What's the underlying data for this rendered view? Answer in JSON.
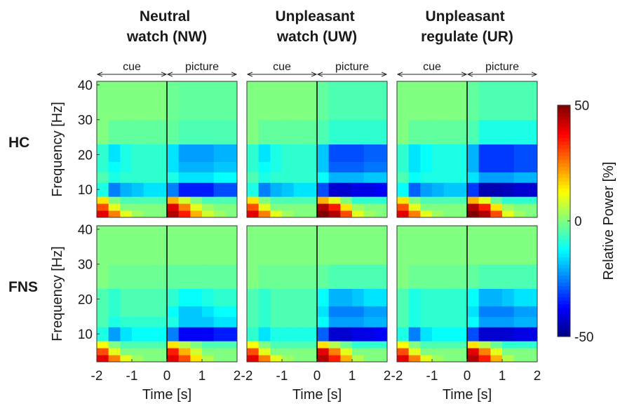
{
  "chart_data": [
    {
      "type": "heatmap",
      "title": "Neutral watch (NW)",
      "row_label": "HC",
      "ylabel": "Frequency [Hz]",
      "xlim": [
        -2,
        2
      ],
      "ylim": [
        2,
        41
      ],
      "yticks": [
        10,
        20,
        30,
        40
      ],
      "onset": 0,
      "annotations": [
        {
          "text": "cue",
          "x": [
            -2,
            0
          ]
        },
        {
          "text": "picture",
          "x": [
            0,
            2
          ]
        }
      ],
      "x_edges": [
        -2,
        -1.667,
        -1.333,
        -1,
        -0.667,
        -0.333,
        0,
        0.333,
        0.667,
        1,
        1.333,
        1.667,
        2
      ],
      "y_edges": [
        2,
        4,
        6,
        8,
        12,
        15,
        18,
        23,
        30,
        41
      ],
      "z": [
        [
          40,
          25,
          10,
          3,
          0,
          0,
          45,
          35,
          20,
          8,
          3,
          0
        ],
        [
          30,
          10,
          0,
          0,
          0,
          0,
          40,
          25,
          10,
          3,
          0,
          0
        ],
        [
          15,
          0,
          -5,
          -5,
          -5,
          -5,
          20,
          8,
          0,
          -5,
          -5,
          -5
        ],
        [
          -10,
          -25,
          -20,
          -18,
          -15,
          -15,
          -25,
          -35,
          -35,
          -35,
          -30,
          -30
        ],
        [
          -5,
          -10,
          -8,
          -8,
          -8,
          -8,
          -10,
          -15,
          -15,
          -15,
          -12,
          -12
        ],
        [
          -8,
          -12,
          -10,
          -8,
          -8,
          -8,
          -15,
          -20,
          -20,
          -20,
          -18,
          -18
        ],
        [
          -8,
          -15,
          -10,
          -8,
          -8,
          -8,
          -15,
          -22,
          -22,
          -22,
          -20,
          -20
        ],
        [
          0,
          -3,
          -3,
          -3,
          -3,
          -3,
          -3,
          -5,
          -5,
          -5,
          -5,
          -5
        ],
        [
          0,
          0,
          0,
          0,
          0,
          0,
          -2,
          -3,
          -3,
          -3,
          -3,
          -3
        ]
      ]
    },
    {
      "type": "heatmap",
      "title": "Unpleasant watch (UW)",
      "xlim": [
        -2,
        2
      ],
      "ylim": [
        2,
        41
      ],
      "onset": 0,
      "annotations": [
        {
          "text": "cue",
          "x": [
            -2,
            0
          ]
        },
        {
          "text": "picture",
          "x": [
            0,
            2
          ]
        }
      ],
      "x_edges": [
        -2,
        -1.667,
        -1.333,
        -1,
        -0.667,
        -0.333,
        0,
        0.333,
        0.667,
        1,
        1.333,
        1.667,
        2
      ],
      "y_edges": [
        2,
        4,
        6,
        8,
        12,
        15,
        18,
        23,
        30,
        41
      ],
      "z": [
        [
          40,
          25,
          10,
          3,
          0,
          0,
          50,
          45,
          30,
          10,
          3,
          0
        ],
        [
          30,
          10,
          0,
          0,
          0,
          0,
          45,
          35,
          15,
          3,
          0,
          0
        ],
        [
          15,
          0,
          -5,
          -5,
          -5,
          -5,
          20,
          10,
          0,
          -8,
          -8,
          -8
        ],
        [
          -10,
          -25,
          -20,
          -18,
          -15,
          -15,
          -30,
          -42,
          -42,
          -40,
          -40,
          -38
        ],
        [
          -5,
          -10,
          -8,
          -8,
          -8,
          -8,
          -12,
          -20,
          -20,
          -20,
          -18,
          -18
        ],
        [
          -8,
          -12,
          -10,
          -8,
          -8,
          -8,
          -18,
          -28,
          -28,
          -28,
          -26,
          -26
        ],
        [
          -8,
          -15,
          -10,
          -8,
          -8,
          -8,
          -18,
          -30,
          -30,
          -30,
          -28,
          -28
        ],
        [
          0,
          -3,
          -3,
          -3,
          -3,
          -3,
          -5,
          -8,
          -8,
          -8,
          -8,
          -8
        ],
        [
          0,
          0,
          0,
          0,
          0,
          0,
          -3,
          -5,
          -5,
          -5,
          -5,
          -5
        ]
      ]
    },
    {
      "type": "heatmap",
      "title": "Unpleasant regulate (UR)",
      "xlim": [
        -2,
        2
      ],
      "ylim": [
        2,
        41
      ],
      "onset": 0,
      "annotations": [
        {
          "text": "cue",
          "x": [
            -2,
            0
          ]
        },
        {
          "text": "picture",
          "x": [
            0,
            2
          ]
        }
      ],
      "x_edges": [
        -2,
        -1.667,
        -1.333,
        -1,
        -0.667,
        -0.333,
        0,
        0.333,
        0.667,
        1,
        1.333,
        1.667,
        2
      ],
      "y_edges": [
        2,
        4,
        6,
        8,
        12,
        15,
        18,
        23,
        30,
        41
      ],
      "z": [
        [
          40,
          25,
          10,
          3,
          0,
          0,
          50,
          45,
          30,
          10,
          3,
          0
        ],
        [
          30,
          10,
          0,
          0,
          0,
          0,
          45,
          35,
          15,
          3,
          0,
          0
        ],
        [
          15,
          0,
          -5,
          -5,
          -5,
          -5,
          20,
          10,
          -2,
          -8,
          -8,
          -8
        ],
        [
          -12,
          -28,
          -22,
          -20,
          -18,
          -18,
          -32,
          -45,
          -45,
          -44,
          -42,
          -42
        ],
        [
          -5,
          -12,
          -10,
          -10,
          -10,
          -10,
          -15,
          -22,
          -22,
          -22,
          -20,
          -20
        ],
        [
          -8,
          -15,
          -12,
          -10,
          -10,
          -10,
          -20,
          -32,
          -32,
          -32,
          -30,
          -30
        ],
        [
          -8,
          -15,
          -12,
          -10,
          -10,
          -10,
          -20,
          -32,
          -32,
          -32,
          -30,
          -30
        ],
        [
          0,
          -3,
          -3,
          -3,
          -3,
          -3,
          -5,
          -10,
          -10,
          -10,
          -10,
          -10
        ],
        [
          0,
          0,
          0,
          0,
          0,
          0,
          -3,
          -5,
          -5,
          -5,
          -5,
          -5
        ]
      ]
    },
    {
      "type": "heatmap",
      "row_label": "FNS",
      "ylabel": "Frequency [Hz]",
      "xlabel": "Time [s]",
      "xlim": [
        -2,
        2
      ],
      "ylim": [
        2,
        41
      ],
      "xticks": [
        -2,
        -1,
        0,
        1,
        2
      ],
      "yticks": [
        10,
        20,
        30,
        40
      ],
      "onset": 0,
      "x_edges": [
        -2,
        -1.667,
        -1.333,
        -1,
        -0.667,
        -0.333,
        0,
        0.333,
        0.667,
        1,
        1.333,
        1.667,
        2
      ],
      "y_edges": [
        2,
        4,
        6,
        8,
        12,
        15,
        18,
        23,
        30,
        41
      ],
      "z": [
        [
          40,
          25,
          10,
          3,
          0,
          0,
          40,
          30,
          15,
          5,
          0,
          0
        ],
        [
          30,
          10,
          0,
          0,
          0,
          0,
          35,
          20,
          8,
          0,
          0,
          0
        ],
        [
          12,
          0,
          -5,
          -5,
          -5,
          -5,
          15,
          5,
          0,
          -5,
          -5,
          -5
        ],
        [
          -10,
          -22,
          -15,
          -12,
          -12,
          -12,
          -25,
          -38,
          -38,
          -38,
          -35,
          -35
        ],
        [
          -5,
          -10,
          -8,
          -8,
          -8,
          -8,
          -10,
          -18,
          -18,
          -18,
          -15,
          -15
        ],
        [
          -5,
          -8,
          -5,
          -5,
          -5,
          -5,
          -12,
          -18,
          -18,
          -15,
          -12,
          -12
        ],
        [
          -5,
          -8,
          -5,
          -5,
          -5,
          -5,
          -8,
          -12,
          -12,
          -10,
          -8,
          -8
        ],
        [
          0,
          -2,
          -2,
          -2,
          -2,
          -2,
          -3,
          -3,
          -3,
          -3,
          -3,
          -3
        ],
        [
          0,
          0,
          0,
          0,
          0,
          0,
          0,
          0,
          0,
          0,
          0,
          0
        ]
      ]
    },
    {
      "type": "heatmap",
      "xlabel": "Time [s]",
      "xlim": [
        -2,
        2
      ],
      "ylim": [
        2,
        41
      ],
      "xticks": [
        -2,
        -1,
        0,
        1,
        2
      ],
      "onset": 0,
      "x_edges": [
        -2,
        -1.667,
        -1.333,
        -1,
        -0.667,
        -0.333,
        0,
        0.333,
        0.667,
        1,
        1.333,
        1.667,
        2
      ],
      "y_edges": [
        2,
        4,
        6,
        8,
        12,
        15,
        18,
        23,
        30,
        41
      ],
      "z": [
        [
          40,
          25,
          10,
          3,
          0,
          0,
          45,
          35,
          20,
          5,
          0,
          0
        ],
        [
          30,
          10,
          0,
          0,
          0,
          0,
          40,
          25,
          10,
          0,
          0,
          0
        ],
        [
          12,
          0,
          -5,
          -5,
          -5,
          -5,
          15,
          5,
          -2,
          -8,
          -8,
          -8
        ],
        [
          -8,
          -15,
          -10,
          -10,
          -10,
          -10,
          -28,
          -42,
          -42,
          -40,
          -40,
          -38
        ],
        [
          -5,
          -8,
          -5,
          -5,
          -5,
          -5,
          -12,
          -22,
          -22,
          -22,
          -20,
          -20
        ],
        [
          -5,
          -8,
          -5,
          -5,
          -5,
          -5,
          -15,
          -25,
          -25,
          -25,
          -22,
          -22
        ],
        [
          -5,
          -8,
          -5,
          -5,
          -5,
          -5,
          -12,
          -20,
          -20,
          -18,
          -15,
          -15
        ],
        [
          0,
          -2,
          -2,
          -2,
          -2,
          -2,
          -3,
          -5,
          -5,
          -5,
          -5,
          -5
        ],
        [
          0,
          0,
          0,
          0,
          0,
          0,
          0,
          0,
          0,
          0,
          0,
          0
        ]
      ]
    },
    {
      "type": "heatmap",
      "xlabel": "Time [s]",
      "xlim": [
        -2,
        2
      ],
      "ylim": [
        2,
        41
      ],
      "xticks": [
        -2,
        -1,
        0,
        1,
        2
      ],
      "onset": 0,
      "x_edges": [
        -2,
        -1.667,
        -1.333,
        -1,
        -0.667,
        -0.333,
        0,
        0.333,
        0.667,
        1,
        1.333,
        1.667,
        2
      ],
      "y_edges": [
        2,
        4,
        6,
        8,
        12,
        15,
        18,
        23,
        30,
        41
      ],
      "z": [
        [
          40,
          25,
          10,
          3,
          0,
          0,
          45,
          35,
          20,
          5,
          0,
          0
        ],
        [
          30,
          10,
          0,
          0,
          0,
          0,
          40,
          25,
          10,
          0,
          0,
          0
        ],
        [
          12,
          0,
          -5,
          -5,
          -5,
          -5,
          15,
          5,
          -2,
          -8,
          -8,
          -8
        ],
        [
          -10,
          -25,
          -15,
          -12,
          -12,
          -12,
          -30,
          -42,
          -42,
          -42,
          -40,
          -40
        ],
        [
          -5,
          -10,
          -8,
          -8,
          -8,
          -8,
          -12,
          -22,
          -22,
          -22,
          -20,
          -20
        ],
        [
          -5,
          -10,
          -8,
          -8,
          -8,
          -8,
          -15,
          -25,
          -25,
          -25,
          -22,
          -22
        ],
        [
          -5,
          -10,
          -8,
          -8,
          -8,
          -8,
          -12,
          -20,
          -20,
          -18,
          -15,
          -15
        ],
        [
          0,
          -2,
          -2,
          -2,
          -2,
          -2,
          -3,
          -5,
          -5,
          -5,
          -5,
          -5
        ],
        [
          0,
          0,
          0,
          0,
          0,
          0,
          0,
          0,
          0,
          0,
          0,
          0
        ]
      ]
    }
  ],
  "colorbar": {
    "label": "Relative Power [%]",
    "lim": [
      -50,
      50
    ],
    "ticks": [
      -50,
      0,
      50
    ],
    "colormap": "jet"
  }
}
